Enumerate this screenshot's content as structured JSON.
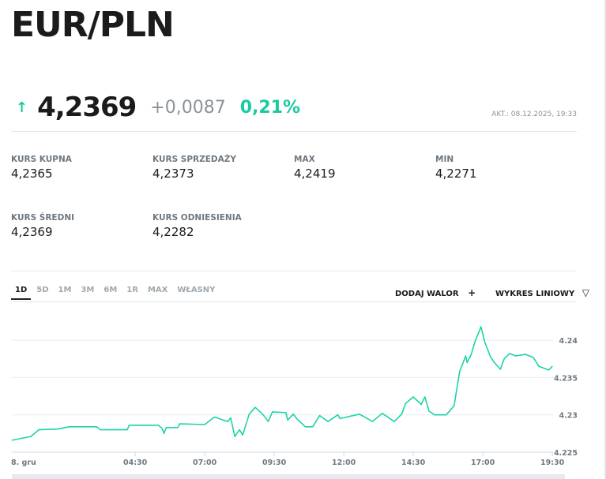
{
  "header": {
    "title": "EUR/PLN"
  },
  "quote": {
    "direction_icon": "arrow-up-icon",
    "price": "4,2369",
    "change": "+0,0087",
    "change_percent": "0,21%",
    "updated": "AKT.: 08.12.2025, 19:33",
    "up_color": "#1bc9a2"
  },
  "stats": [
    {
      "label": "KURS KUPNA",
      "value": "4,2365"
    },
    {
      "label": "KURS SPRZEDAŻY",
      "value": "4,2373"
    },
    {
      "label": "MAX",
      "value": "4,2419"
    },
    {
      "label": "MIN",
      "value": "4,2271"
    },
    {
      "label": "KURS ŚREDNI",
      "value": "4,2369"
    },
    {
      "label": "KURS ODNIESIENIA",
      "value": "4,2282"
    }
  ],
  "range_tabs": [
    {
      "label": "1D",
      "active": true
    },
    {
      "label": "5D"
    },
    {
      "label": "1M"
    },
    {
      "label": "3M"
    },
    {
      "label": "6M"
    },
    {
      "label": "1R"
    },
    {
      "label": "MAX"
    },
    {
      "label": "WŁASNY"
    }
  ],
  "toolbar": {
    "add_label": "DODAJ WALOR",
    "add_icon": "+",
    "chart_type_label": "WYKRES LINIOWY",
    "chart_type_icon": "▽"
  },
  "chart_data": {
    "type": "line",
    "x_ticks": [
      "8. gru",
      "04:30",
      "07:00",
      "09:30",
      "12:00",
      "14:30",
      "17:00",
      "19:30"
    ],
    "y_ticks": [
      "4.24",
      "4.235",
      "4.23",
      "4.225"
    ],
    "ylim": [
      4.225,
      4.2425
    ],
    "grid": true,
    "color": "#1bd4a7",
    "points": [
      [
        "00:04",
        4.2266
      ],
      [
        "00:45",
        4.2271
      ],
      [
        "01:02",
        4.228
      ],
      [
        "01:43",
        4.2281
      ],
      [
        "02:08",
        4.2284
      ],
      [
        "03:07",
        4.2284
      ],
      [
        "03:15",
        4.228
      ],
      [
        "04:13",
        4.228
      ],
      [
        "04:17",
        4.2286
      ],
      [
        "05:20",
        4.2286
      ],
      [
        "05:28",
        4.2282
      ],
      [
        "05:32",
        4.2275
      ],
      [
        "05:37",
        4.2283
      ],
      [
        "06:02",
        4.2283
      ],
      [
        "06:06",
        4.2288
      ],
      [
        "07:00",
        4.2287
      ],
      [
        "07:21",
        4.2297
      ],
      [
        "07:50",
        4.2291
      ],
      [
        "07:56",
        4.2296
      ],
      [
        "08:05",
        4.2271
      ],
      [
        "08:15",
        4.228
      ],
      [
        "08:22",
        4.2273
      ],
      [
        "08:36",
        4.2301
      ],
      [
        "08:49",
        4.231
      ],
      [
        "09:05",
        4.2301
      ],
      [
        "09:17",
        4.2291
      ],
      [
        "09:26",
        4.2304
      ],
      [
        "09:55",
        4.2303
      ],
      [
        "09:59",
        4.2293
      ],
      [
        "10:11",
        4.2301
      ],
      [
        "10:20",
        4.2294
      ],
      [
        "10:37",
        4.2284
      ],
      [
        "10:53",
        4.2284
      ],
      [
        "11:08",
        4.2299
      ],
      [
        "11:26",
        4.2291
      ],
      [
        "11:47",
        4.23
      ],
      [
        "11:52",
        4.2295
      ],
      [
        "12:34",
        4.2301
      ],
      [
        "13:02",
        4.2291
      ],
      [
        "13:23",
        4.2302
      ],
      [
        "13:49",
        4.2291
      ],
      [
        "14:05",
        4.2301
      ],
      [
        "14:13",
        4.2315
      ],
      [
        "14:30",
        4.2324
      ],
      [
        "14:47",
        4.2314
      ],
      [
        "14:55",
        4.2324
      ],
      [
        "15:04",
        4.2305
      ],
      [
        "15:16",
        4.23
      ],
      [
        "15:41",
        4.23
      ],
      [
        "15:58",
        4.2312
      ],
      [
        "16:10",
        4.2358
      ],
      [
        "16:23",
        4.2379
      ],
      [
        "16:26",
        4.237
      ],
      [
        "16:35",
        4.2381
      ],
      [
        "16:43",
        4.2398
      ],
      [
        "16:56",
        4.2418
      ],
      [
        "17:04",
        4.2398
      ],
      [
        "17:17",
        4.2377
      ],
      [
        "17:25",
        4.237
      ],
      [
        "17:38",
        4.2361
      ],
      [
        "17:46",
        4.2375
      ],
      [
        "17:58",
        4.2382
      ],
      [
        "18:11",
        4.2379
      ],
      [
        "18:32",
        4.2381
      ],
      [
        "18:49",
        4.2377
      ],
      [
        "19:01",
        4.2365
      ],
      [
        "19:22",
        4.236
      ],
      [
        "19:30",
        4.2365
      ]
    ]
  }
}
